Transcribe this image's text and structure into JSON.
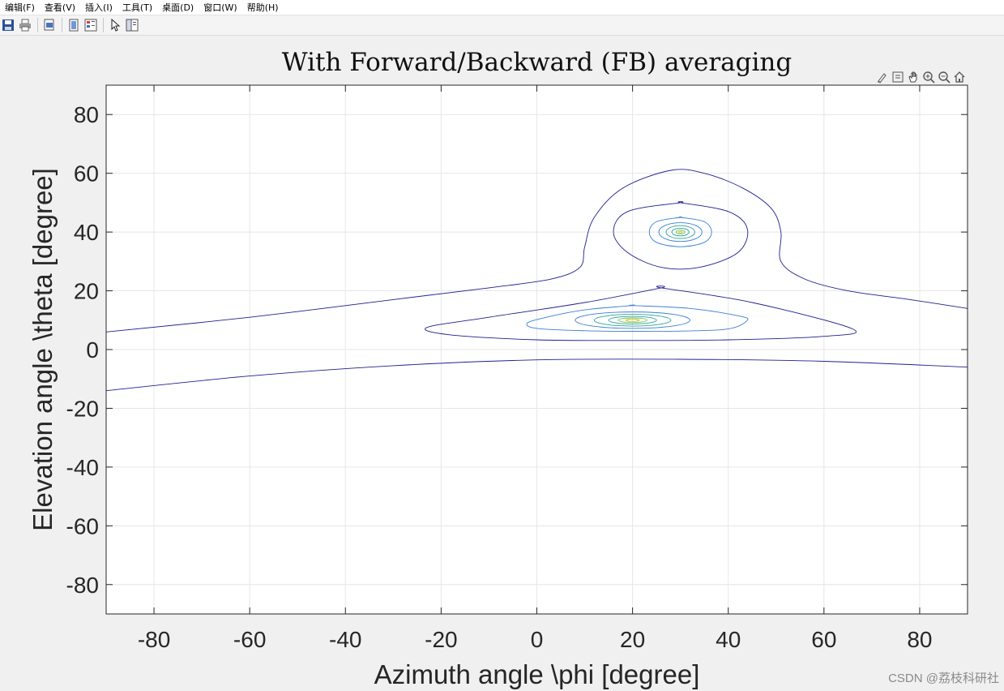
{
  "menu": {
    "items": [
      "编辑(F)",
      "查看(V)",
      "插入(I)",
      "工具(T)",
      "桌面(D)",
      "窗口(W)",
      "帮助(H)"
    ]
  },
  "toolbar": {
    "buttons": [
      "save-icon",
      "print-icon",
      "print-preview-icon",
      "figure-palette-icon",
      "plot-browser-icon",
      "pointer-icon",
      "property-editor-icon"
    ]
  },
  "axes_toolbar": {
    "buttons": [
      "brush-icon",
      "datatip-icon",
      "pan-icon",
      "zoom-in-icon",
      "zoom-out-icon",
      "home-icon"
    ]
  },
  "watermark": "CSDN @荔枝科研社",
  "colors": {
    "axes_bg": "#ffffff",
    "grid": "#e6e6e6",
    "axis_text": "#262626",
    "contour_outer": "#1f1f8f",
    "contour_mid": "#3a7fd0",
    "contour_inner": "#2aa19a",
    "contour_peak": "#b6c42b"
  },
  "chart_data": {
    "type": "contour",
    "title": "With Forward/Backward (FB) averaging",
    "xlabel": "Azimuth angle \\phi [degree]",
    "ylabel": "Elevation angle \\theta [degree]",
    "xlim": [
      -90,
      90
    ],
    "ylim": [
      -90,
      90
    ],
    "xticks": [
      -80,
      -60,
      -40,
      -20,
      0,
      20,
      40,
      60,
      80
    ],
    "yticks": [
      -80,
      -60,
      -40,
      -20,
      0,
      20,
      40,
      60,
      80
    ],
    "grid": true,
    "contours": [
      {
        "level": "outer-upper",
        "color": "#1f1f8f",
        "points": [
          [
            -90,
            6
          ],
          [
            -60,
            11
          ],
          [
            -30,
            17
          ],
          [
            -10,
            21
          ],
          [
            3,
            24
          ],
          [
            9,
            28
          ],
          [
            10,
            35
          ],
          [
            12,
            45
          ],
          [
            18,
            55
          ],
          [
            28,
            61
          ],
          [
            35,
            60
          ],
          [
            43,
            55
          ],
          [
            49,
            48
          ],
          [
            51,
            40
          ],
          [
            51,
            30
          ],
          [
            56,
            24
          ],
          [
            65,
            20
          ],
          [
            78,
            17
          ],
          [
            90,
            14
          ]
        ]
      },
      {
        "level": "outer-lower",
        "color": "#1f1f8f",
        "points": [
          [
            -90,
            -14
          ],
          [
            -60,
            -9
          ],
          [
            -30,
            -5.5
          ],
          [
            0,
            -3.5
          ],
          [
            30,
            -3.3
          ],
          [
            60,
            -4
          ],
          [
            90,
            -6
          ]
        ]
      },
      {
        "level": "lower-peak-1",
        "color": "#1f1f8f",
        "closed": true,
        "points": [
          [
            26,
            21
          ],
          [
            45,
            16
          ],
          [
            66,
            7
          ],
          [
            60,
            4.5
          ],
          [
            40,
            3.3
          ],
          [
            20,
            3.1
          ],
          [
            0,
            3.3
          ],
          [
            -18,
            5
          ],
          [
            -23,
            7.5
          ],
          [
            -10,
            11
          ],
          [
            10,
            16
          ],
          [
            26,
            21
          ]
        ]
      },
      {
        "level": "lower-peak-2",
        "color": "#3a7fd0",
        "closed": true,
        "points": [
          [
            20,
            15
          ],
          [
            32,
            14
          ],
          [
            42,
            11.5
          ],
          [
            44,
            10
          ],
          [
            40,
            7
          ],
          [
            30,
            6.3
          ],
          [
            20,
            6.2
          ],
          [
            10,
            6.4
          ],
          [
            0,
            7.2
          ],
          [
            -2,
            9
          ],
          [
            2,
            11
          ],
          [
            10,
            13.5
          ],
          [
            20,
            15
          ]
        ]
      },
      {
        "level": "upper-peak-1",
        "color": "#1f1f8f",
        "closed": true,
        "points": [
          [
            30,
            50
          ],
          [
            40,
            47
          ],
          [
            44,
            41
          ],
          [
            42,
            33
          ],
          [
            34,
            28
          ],
          [
            26,
            28
          ],
          [
            19,
            33
          ],
          [
            16,
            40
          ],
          [
            19,
            47
          ],
          [
            30,
            50
          ]
        ]
      },
      {
        "level": "upper-peak-2",
        "color": "#3a7fd0",
        "closed": true,
        "points": [
          [
            30,
            45
          ],
          [
            35,
            43.5
          ],
          [
            36.5,
            40
          ],
          [
            35,
            36.5
          ],
          [
            30,
            35
          ],
          [
            25,
            36.5
          ],
          [
            23.5,
            40
          ],
          [
            25,
            43.5
          ],
          [
            30,
            45
          ]
        ]
      }
    ],
    "peaks": [
      {
        "x": 20,
        "y": 10,
        "rings": [
          [
            12,
            2.8,
            "#3a7fd0"
          ],
          [
            8,
            2.0,
            "#2aa19a"
          ],
          [
            5,
            1.3,
            "#2aa19a"
          ],
          [
            3,
            0.8,
            "#7fbf4d"
          ],
          [
            1.4,
            0.4,
            "#b6c42b"
          ]
        ]
      },
      {
        "x": 30,
        "y": 40,
        "rings": [
          [
            4.5,
            3.2,
            "#3a7fd0"
          ],
          [
            3.0,
            2.2,
            "#2aa19a"
          ],
          [
            1.8,
            1.3,
            "#2aa19a"
          ],
          [
            0.9,
            0.7,
            "#7fbf4d"
          ],
          [
            0.4,
            0.3,
            "#b6c42b"
          ]
        ]
      }
    ]
  }
}
